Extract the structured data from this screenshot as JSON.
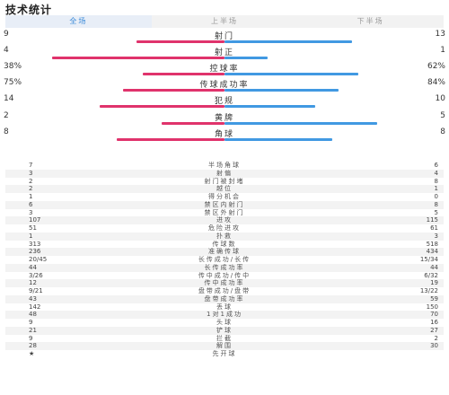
{
  "title": "技术统计",
  "tabs": [
    "全场",
    "上半场",
    "下半场"
  ],
  "main_stats": [
    {
      "label": "射门",
      "left": "9",
      "right": "13",
      "left_share": 0.41,
      "right_share": 0.59
    },
    {
      "label": "射正",
      "left": "4",
      "right": "1",
      "left_share": 0.8,
      "right_share": 0.2
    },
    {
      "label": "控球率",
      "left": "38%",
      "right": "62%",
      "left_share": 0.38,
      "right_share": 0.62
    },
    {
      "label": "传球成功率",
      "left": "75%",
      "right": "84%",
      "left_share": 0.47,
      "right_share": 0.53
    },
    {
      "label": "犯规",
      "left": "14",
      "right": "10",
      "left_share": 0.58,
      "right_share": 0.42
    },
    {
      "label": "黄牌",
      "left": "2",
      "right": "5",
      "left_share": 0.29,
      "right_share": 0.71
    },
    {
      "label": "角球",
      "left": "8",
      "right": "8",
      "left_share": 0.5,
      "right_share": 0.5
    }
  ],
  "detail_stats": [
    {
      "label": "半场角球",
      "left": "7",
      "right": "6"
    },
    {
      "label": "射偏",
      "left": "3",
      "right": "4"
    },
    {
      "label": "射门被封堵",
      "left": "2",
      "right": "8"
    },
    {
      "label": "越位",
      "left": "2",
      "right": "1"
    },
    {
      "label": "得分机会",
      "left": "1",
      "right": "0"
    },
    {
      "label": "禁区内射门",
      "left": "6",
      "right": "8"
    },
    {
      "label": "禁区外射门",
      "left": "3",
      "right": "5"
    },
    {
      "label": "进攻",
      "left": "107",
      "right": "115"
    },
    {
      "label": "危险进攻",
      "left": "51",
      "right": "61"
    },
    {
      "label": "扑救",
      "left": "1",
      "right": "3"
    },
    {
      "label": "传球数",
      "left": "313",
      "right": "518"
    },
    {
      "label": "准确传球",
      "left": "236",
      "right": "434"
    },
    {
      "label": "长传成功/长传",
      "left": "20/45",
      "right": "15/34"
    },
    {
      "label": "长传成功率",
      "left": "44",
      "right": "44"
    },
    {
      "label": "传中成功/传中",
      "left": "3/26",
      "right": "6/32"
    },
    {
      "label": "传中成功率",
      "left": "12",
      "right": "19"
    },
    {
      "label": "盘带成功/盘带",
      "left": "9/21",
      "right": "13/22"
    },
    {
      "label": "盘带成功率",
      "left": "43",
      "right": "59"
    },
    {
      "label": "丢球",
      "left": "142",
      "right": "150"
    },
    {
      "label": "1对1成功",
      "left": "48",
      "right": "70"
    },
    {
      "label": "头球",
      "left": "9",
      "right": "16"
    },
    {
      "label": "铲球",
      "left": "21",
      "right": "27"
    },
    {
      "label": "拦截",
      "left": "9",
      "right": "2"
    },
    {
      "label": "解围",
      "left": "28",
      "right": "30"
    },
    {
      "label": "先开球",
      "left": "★",
      "right": ""
    }
  ],
  "colors": {
    "home": "#e0336c",
    "away": "#4199e2",
    "accent": "#3a8ad8"
  }
}
